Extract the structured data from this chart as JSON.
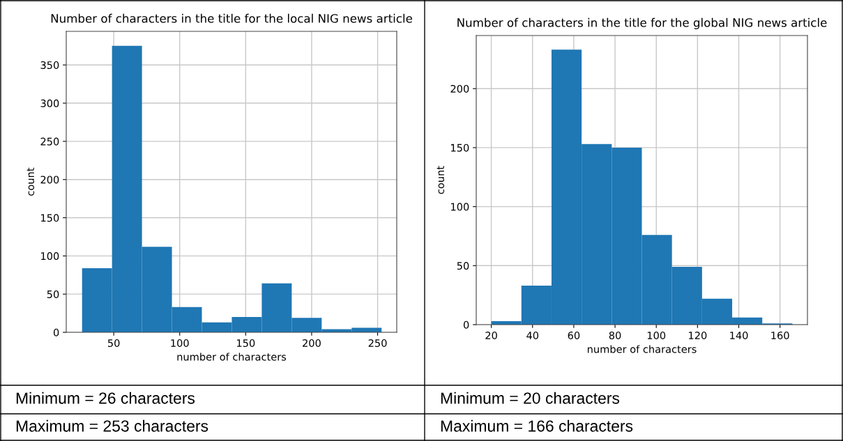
{
  "chart_data": [
    {
      "type": "histogram",
      "title": "Number of characters in the title for the local NIG news article",
      "xlabel": "number of characters",
      "ylabel": "count",
      "color": "#1f77b4",
      "bins": [
        26,
        48.7,
        71.4,
        94.1,
        116.8,
        139.5,
        162.2,
        184.9,
        207.6,
        230.3,
        253
      ],
      "values": [
        84,
        375,
        112,
        33,
        13,
        20,
        64,
        19,
        4,
        6
      ],
      "xlim": [
        14,
        264.5
      ],
      "ylim": [
        0,
        394
      ],
      "xticks": [
        50,
        100,
        150,
        200,
        250
      ],
      "yticks": [
        0,
        50,
        100,
        150,
        200,
        250,
        300,
        350
      ],
      "grid": true,
      "annotations": [
        "Minimum = 26 characters",
        "Maximum = 253 characters"
      ]
    },
    {
      "type": "histogram",
      "title": "Number of characters in the title for the global NIG news article",
      "xlabel": "number of characters",
      "ylabel": "count",
      "color": "#1f77b4",
      "bins": [
        20,
        34.6,
        49.2,
        63.8,
        78.4,
        93,
        107.6,
        122.2,
        136.8,
        151.4,
        166
      ],
      "values": [
        3,
        33,
        233,
        153,
        150,
        76,
        49,
        22,
        6,
        1
      ],
      "xlim": [
        12.7,
        173.3
      ],
      "ylim": [
        0,
        245
      ],
      "xticks": [
        20,
        40,
        60,
        80,
        100,
        120,
        140,
        160
      ],
      "yticks": [
        0,
        50,
        100,
        150,
        200
      ],
      "grid": true,
      "annotations": [
        "Minimum = 20 characters",
        "Maximum = 166 characters"
      ]
    }
  ]
}
